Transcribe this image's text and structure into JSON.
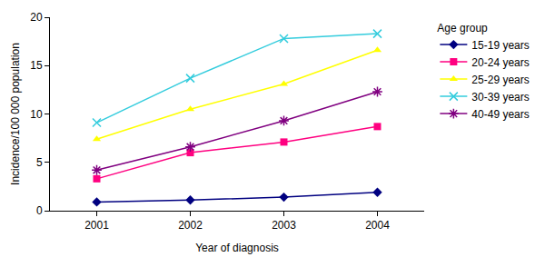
{
  "chart_data": {
    "type": "line",
    "x_label": "Year of diagnosis",
    "y_label": "Incidence/100 000 population",
    "legend_title": "Age group",
    "legend": "right",
    "grid": false,
    "categories": [
      "2001",
      "2002",
      "2003",
      "2004"
    ],
    "ylim": [
      0,
      20
    ],
    "yticks": [
      0,
      5,
      10,
      15,
      20
    ],
    "series": [
      {
        "name": "15-19 years",
        "color": "#000080",
        "marker": "diamond",
        "values": [
          0.9,
          1.1,
          1.4,
          1.9
        ]
      },
      {
        "name": "20-24 years",
        "color": "#ff0080",
        "marker": "square",
        "values": [
          3.3,
          6.0,
          7.1,
          8.7
        ]
      },
      {
        "name": "25-29 years",
        "color": "#ffff00",
        "marker": "triangle",
        "values": [
          7.4,
          10.5,
          13.1,
          16.6
        ]
      },
      {
        "name": "30-39 years",
        "color": "#33ccdd",
        "marker": "x",
        "values": [
          9.1,
          13.7,
          17.8,
          18.3
        ]
      },
      {
        "name": "40-49 years",
        "color": "#800080",
        "marker": "star",
        "values": [
          4.2,
          6.6,
          9.3,
          12.3
        ]
      }
    ]
  }
}
